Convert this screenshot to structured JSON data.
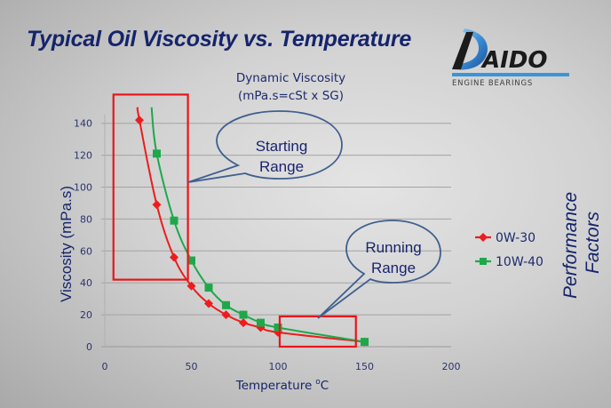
{
  "slide": {
    "title": "Typical Oil Viscosity vs. Temperature",
    "side_label_line1": "Performance",
    "side_label_line2": "Factors"
  },
  "logo": {
    "brand": "AIDO",
    "tagline": "ENGINE BEARINGS"
  },
  "callouts": {
    "starting_line1": "Starting",
    "starting_line2": "Range",
    "running_line1": "Running",
    "running_line2": "Range"
  },
  "colors": {
    "title": "#15246b",
    "series_0w30": "#ee1c1c",
    "series_10w40": "#1ea84a",
    "highlight_box": "#e8161a",
    "callout_stroke": "#3f5f8f"
  },
  "chart_data": {
    "type": "line",
    "title_line1": "Dynamic Viscosity",
    "title_line2": "(mPa.s=cSt x SG)",
    "xlabel": "Temperature",
    "xlabel_unit_sup": "o",
    "xlabel_unit": "C",
    "ylabel": "Viscosity (mPa.s)",
    "xlim": [
      0,
      200
    ],
    "ylim": [
      0,
      140
    ],
    "x_ticks": [
      0,
      50,
      100,
      150,
      200
    ],
    "y_ticks": [
      0,
      20,
      40,
      60,
      80,
      100,
      120,
      140
    ],
    "grid": "horizontal",
    "legend_position": "right",
    "series": [
      {
        "name": "0W-30",
        "marker": "diamond",
        "x": [
          20,
          30,
          40,
          50,
          60,
          70,
          80,
          90,
          100,
          150
        ],
        "y": [
          142,
          89,
          56,
          38,
          27,
          20,
          15,
          12,
          9,
          3
        ]
      },
      {
        "name": "10W-40",
        "marker": "square",
        "x": [
          30,
          40,
          50,
          60,
          70,
          80,
          90,
          100,
          150
        ],
        "y": [
          121,
          79,
          54,
          37,
          26,
          20,
          15,
          12,
          3
        ]
      }
    ],
    "highlight_regions": [
      {
        "name": "Starting Range",
        "x_range": [
          5,
          48
        ],
        "y_range": [
          42,
          158
        ]
      },
      {
        "name": "Running Range",
        "x_range": [
          101,
          145
        ],
        "y_range": [
          0,
          19
        ]
      }
    ]
  }
}
